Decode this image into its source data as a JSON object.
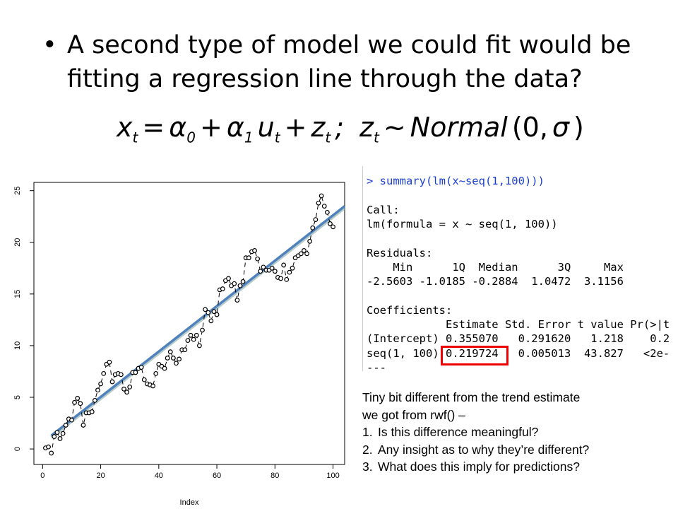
{
  "bullet": "A second type of model we could fit would be fitting a regression line through the data?",
  "formula": [
    "x",
    "t",
    "=",
    "α",
    "0",
    "+",
    "α",
    "1",
    "u",
    "t",
    "+",
    "z",
    "t",
    ";",
    "z",
    "t",
    "~",
    "Normal",
    "(0,",
    "σ",
    ")"
  ],
  "chart_data": {
    "type": "scatter",
    "xlabel": "Index",
    "x": [
      1,
      2,
      3,
      4,
      5,
      6,
      7,
      8,
      9,
      10,
      11,
      12,
      13,
      14,
      15,
      16,
      17,
      18,
      19,
      20,
      21,
      22,
      23,
      24,
      25,
      26,
      27,
      28,
      29,
      30,
      31,
      32,
      33,
      34,
      35,
      36,
      37,
      38,
      39,
      40,
      41,
      42,
      43,
      44,
      45,
      46,
      47,
      48,
      49,
      50,
      51,
      52,
      53,
      54,
      55,
      56,
      57,
      58,
      59,
      60,
      61,
      62,
      63,
      64,
      65,
      66,
      67,
      68,
      69,
      70,
      71,
      72,
      73,
      74,
      75,
      76,
      77,
      78,
      79,
      80,
      81,
      82,
      83,
      84,
      85,
      86,
      87,
      88,
      89,
      90,
      91,
      92,
      93,
      94,
      95,
      96,
      97,
      98,
      99,
      100
    ],
    "values": [
      0.1,
      0.2,
      -0.4,
      1.2,
      1.6,
      1.0,
      1.5,
      2.3,
      2.9,
      2.8,
      4.5,
      4.9,
      4.4,
      2.3,
      3.5,
      3.5,
      3.6,
      4.7,
      5.7,
      6.3,
      7.3,
      8.2,
      8.4,
      6.5,
      7.2,
      7.3,
      7.2,
      5.8,
      5.5,
      6.0,
      7.4,
      7.4,
      7.8,
      7.9,
      6.7,
      6.3,
      6.2,
      6.1,
      7.3,
      8.2,
      8.0,
      7.8,
      8.8,
      9.4,
      8.8,
      8.3,
      8.7,
      9.6,
      9.6,
      10.5,
      11.0,
      10.6,
      11.0,
      10.0,
      11.5,
      13.5,
      13.2,
      12.4,
      13.3,
      13.0,
      15.4,
      15.5,
      16.3,
      16.5,
      15.8,
      16.0,
      14.4,
      15.8,
      16.2,
      18.5,
      18.5,
      19.1,
      19.2,
      18.4,
      17.2,
      17.6,
      17.3,
      17.3,
      17.5,
      17.2,
      16.6,
      16.5,
      17.8,
      16.4,
      17.1,
      17.5,
      18.5,
      18.7,
      18.9,
      19.2,
      18.9,
      20.1,
      21.4,
      22.2,
      23.8,
      24.5,
      23.5,
      22.9,
      21.8,
      21.5
    ],
    "fit": {
      "x": [
        3,
        104
      ],
      "values": [
        1.3,
        23.5
      ],
      "color": "#4f81bd"
    },
    "xlim": [
      -3,
      104
    ],
    "ylim": [
      -1.5,
      25.8
    ],
    "xticks": [
      0,
      20,
      40,
      60,
      80,
      100
    ],
    "yticks": [
      0,
      5,
      10,
      15,
      20,
      25
    ]
  },
  "console": [
    "> summary(lm(x~seq(1,100)))",
    "Call:",
    "lm(formula = x ~ seq(1, 100))",
    "Residuals:",
    "    Min      1Q  Median      3Q     Max",
    "-2.5603 -1.0185 -0.2884  1.0472  3.1156",
    "Coefficients:",
    "            Estimate Std. Error t value Pr(>|t",
    "(Intercept) 0.355070   0.291620   1.218    0.2",
    "seq(1, 100) 0.219724   0.005013  43.827   <2e-",
    "---"
  ],
  "notes": {
    "intro": [
      "Tiny bit different from the trend estimate",
      "we got from rwf() –"
    ],
    "items": [
      {
        "number": "1.",
        "text": "Is this difference meaningful?"
      },
      {
        "number": "2.",
        "text": "Any insight as to why they’re different?"
      },
      {
        "number": "3.",
        "text": "What does this imply for predictions?"
      }
    ]
  }
}
